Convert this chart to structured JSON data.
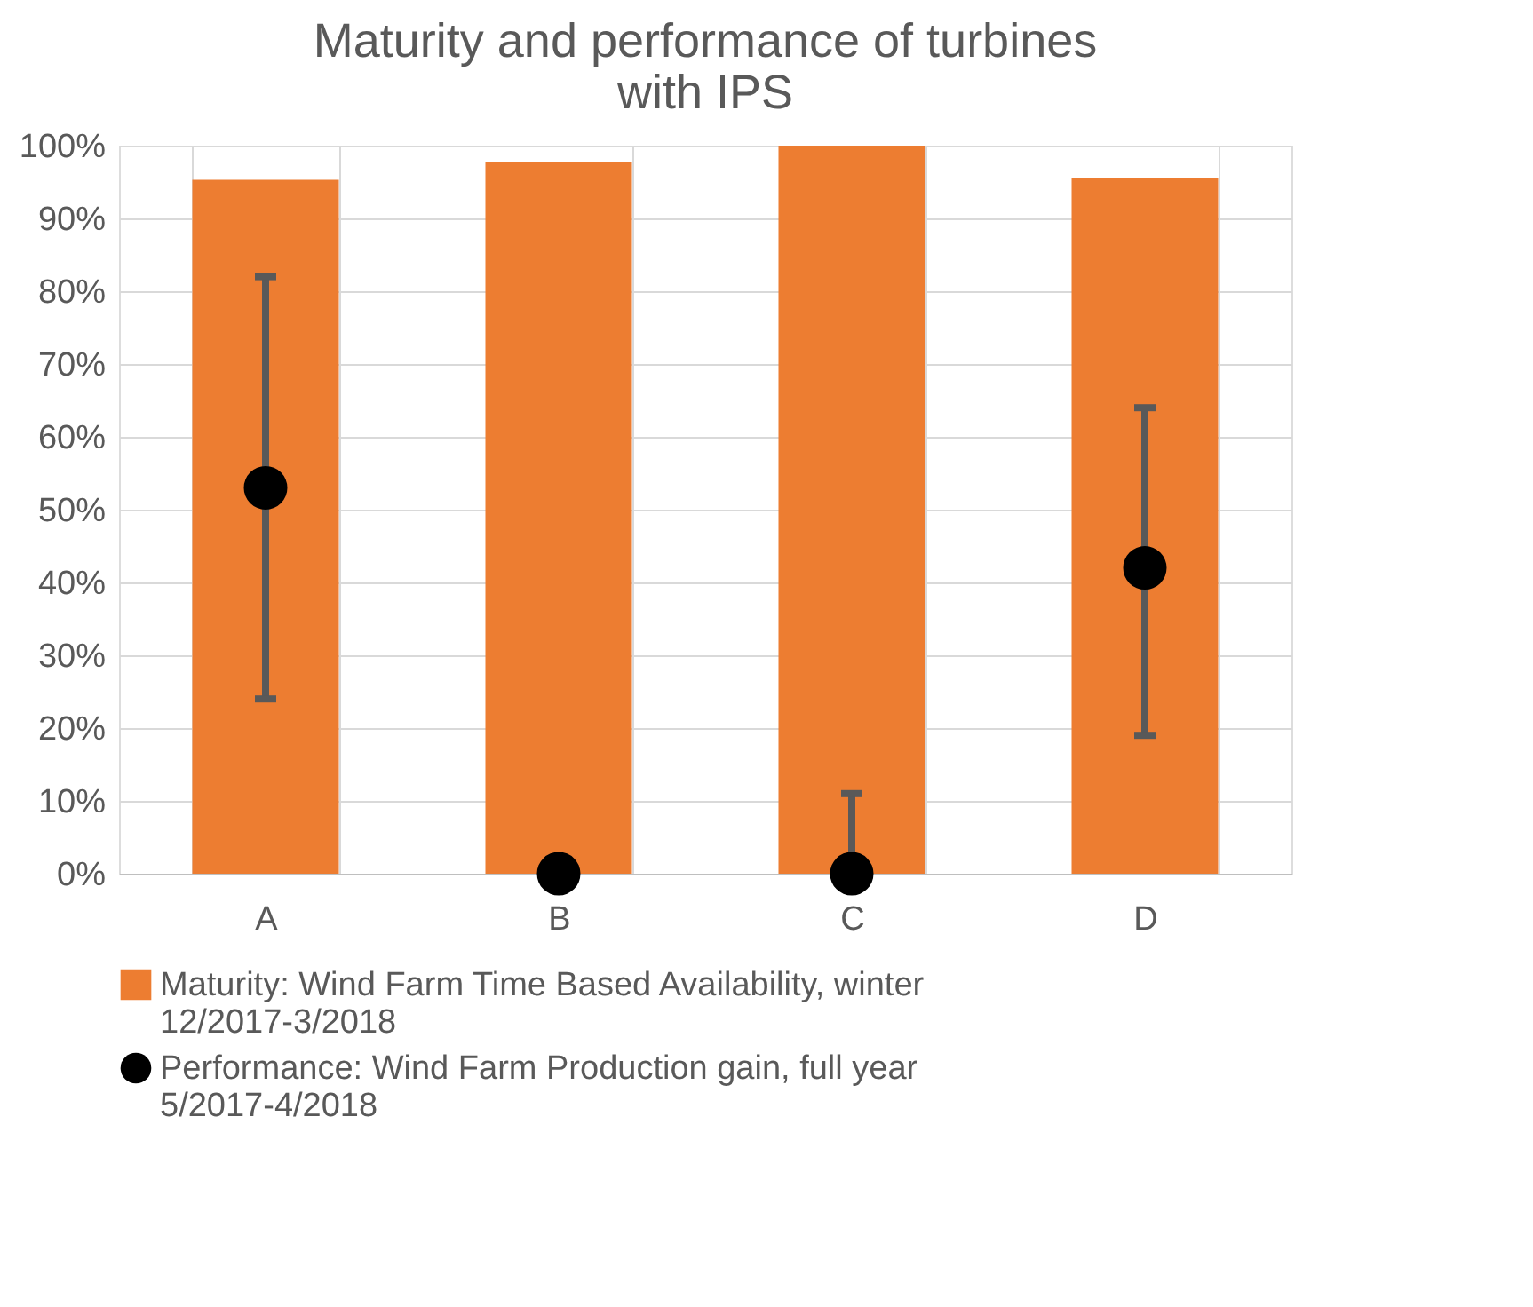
{
  "chart_data": {
    "type": "bar",
    "title": "Maturity and performance of turbines with IPS",
    "categories": [
      "A",
      "B",
      "C",
      "D"
    ],
    "series": [
      {
        "name": "Maturity: Wind Farm Time Based Availability, winter 12/2017-3/2018",
        "color": "#ed7d31",
        "values": [
          95.3,
          97.8,
          100,
          95.6
        ]
      },
      {
        "name": "Performance: Wind Farm Production gain, full year 5/2017-4/2018",
        "type": "scatter",
        "color": "#000000",
        "values": [
          53,
          0,
          0,
          42
        ],
        "errors": [
          [
            24,
            82
          ],
          null,
          [
            0,
            11
          ],
          [
            19,
            64
          ]
        ]
      }
    ],
    "ylim": [
      0,
      100
    ],
    "yticks": [
      {
        "value": 0,
        "label": "0%"
      },
      {
        "value": 10,
        "label": "10%"
      },
      {
        "value": 20,
        "label": "20%"
      },
      {
        "value": 30,
        "label": "30%"
      },
      {
        "value": 40,
        "label": "40%"
      },
      {
        "value": 50,
        "label": "50%"
      },
      {
        "value": 60,
        "label": "60%"
      },
      {
        "value": 70,
        "label": "70%"
      },
      {
        "value": 80,
        "label": "80%"
      },
      {
        "value": 90,
        "label": "90%"
      },
      {
        "value": 100,
        "label": "100%"
      }
    ],
    "grid": true,
    "legend": "bottom",
    "marker": "circle"
  }
}
